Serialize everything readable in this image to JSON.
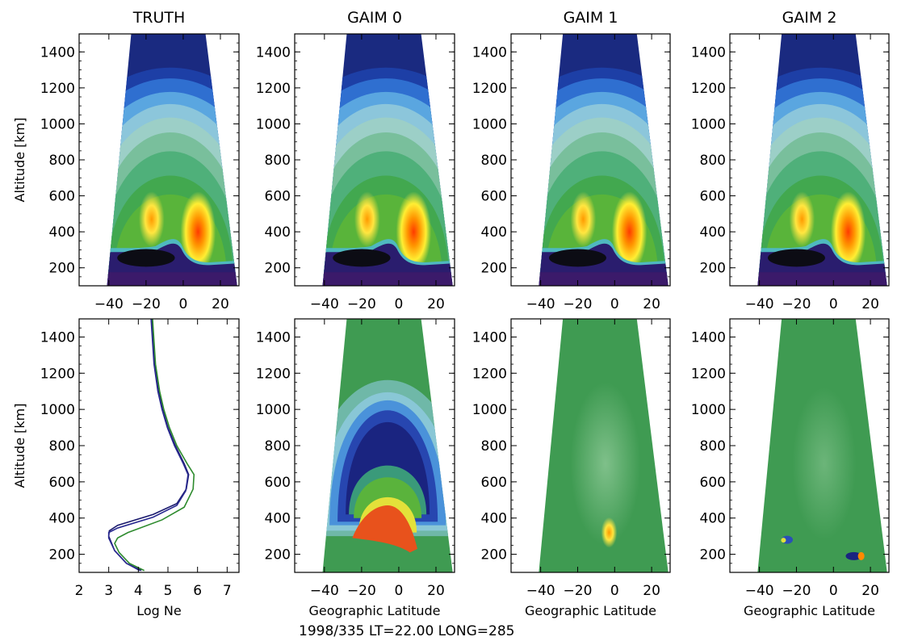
{
  "figure": {
    "footer": "1998/335   LT=22.00   LONG=285",
    "colors": {
      "axis": "#000000",
      "profile_series_1": "#1a1a6e",
      "profile_series_2": "#2e8b2e",
      "residual_background": "#3f9b52"
    }
  },
  "chart_data": [
    {
      "type": "heatmap",
      "title": "TRUTH",
      "ylabel": "Altitude [km]",
      "xlabel": "",
      "x_ticks": [
        -40,
        -20,
        0,
        20
      ],
      "x_tick_labels": [
        "−40",
        "−20",
        "0",
        "20"
      ],
      "y_ticks": [
        200,
        400,
        600,
        800,
        1000,
        1200,
        1400
      ],
      "xlim": [
        -56,
        30
      ],
      "ylim": [
        100,
        1500
      ],
      "colormap": "rainbow",
      "features": "dark trough near 300 km between -40 and 0; twin equatorial anomaly crests near -15 and +8 at 350-500 km"
    },
    {
      "type": "heatmap",
      "title": "GAIM 0",
      "ylabel": "",
      "xlabel": "",
      "x_ticks": [
        -40,
        -20,
        0,
        20
      ],
      "x_tick_labels": [
        "−40",
        "−20",
        "0",
        "20"
      ],
      "y_ticks": [
        200,
        400,
        600,
        800,
        1000,
        1200,
        1400
      ],
      "xlim": [
        -56,
        30
      ],
      "ylim": [
        100,
        1500
      ],
      "colormap": "rainbow"
    },
    {
      "type": "heatmap",
      "title": "GAIM  1",
      "ylabel": "",
      "xlabel": "",
      "x_ticks": [
        -40,
        -20,
        0,
        20
      ],
      "x_tick_labels": [
        "−40",
        "−20",
        "0",
        "20"
      ],
      "y_ticks": [
        200,
        400,
        600,
        800,
        1000,
        1200,
        1400
      ],
      "xlim": [
        -56,
        30
      ],
      "ylim": [
        100,
        1500
      ],
      "colormap": "rainbow"
    },
    {
      "type": "heatmap",
      "title": "GAIM  2",
      "ylabel": "",
      "xlabel": "",
      "x_ticks": [
        -40,
        -20,
        0,
        20
      ],
      "x_tick_labels": [
        "−40",
        "−20",
        "0",
        "20"
      ],
      "y_ticks": [
        200,
        400,
        600,
        800,
        1000,
        1200,
        1400
      ],
      "xlim": [
        -56,
        30
      ],
      "ylim": [
        100,
        1500
      ],
      "colormap": "rainbow"
    },
    {
      "type": "line",
      "title": "",
      "ylabel": "Altitude [km]",
      "xlabel": "Log Ne",
      "x_ticks": [
        2,
        3,
        4,
        5,
        6,
        7
      ],
      "x_tick_labels": [
        "2",
        "3",
        "4",
        "5",
        "6",
        "7"
      ],
      "y_ticks": [
        200,
        400,
        600,
        800,
        1000,
        1200,
        1400
      ],
      "xlim": [
        2,
        7.4
      ],
      "ylim": [
        100,
        1500
      ],
      "series": [
        {
          "color": "#1a1a6e",
          "x": [
            4.1,
            3.6,
            3.2,
            3.0,
            3.02,
            3.3,
            4.5,
            5.3,
            5.62,
            5.7,
            5.55,
            5.25,
            5.0,
            4.82,
            4.68,
            4.55,
            4.45
          ],
          "y": [
            110,
            150,
            220,
            300,
            330,
            360,
            420,
            480,
            560,
            640,
            700,
            800,
            900,
            1000,
            1100,
            1250,
            1500
          ]
        },
        {
          "color": "#2a2a90",
          "x": [
            4.05,
            3.6,
            3.2,
            3.0,
            3.0,
            3.3,
            4.5,
            5.3,
            5.6,
            5.68,
            5.52,
            5.22,
            4.98,
            4.8,
            4.66,
            4.53,
            4.43
          ],
          "y": [
            110,
            150,
            220,
            290,
            320,
            345,
            405,
            470,
            550,
            640,
            700,
            800,
            900,
            1000,
            1100,
            1250,
            1500
          ]
        },
        {
          "color": "#2e8b2e",
          "x": [
            4.2,
            3.7,
            3.35,
            3.2,
            3.3,
            3.65,
            4.8,
            5.55,
            5.85,
            5.88,
            5.65,
            5.3,
            5.05,
            4.86,
            4.72,
            4.58,
            4.48
          ],
          "y": [
            110,
            150,
            210,
            260,
            290,
            320,
            390,
            460,
            560,
            640,
            700,
            800,
            900,
            1000,
            1100,
            1250,
            1500
          ]
        }
      ]
    },
    {
      "type": "heatmap",
      "title": "",
      "ylabel": "",
      "xlabel": "Geographic Latitude",
      "x_ticks": [
        -40,
        -20,
        0,
        20
      ],
      "x_tick_labels": [
        "−40",
        "−20",
        "0",
        "20"
      ],
      "y_ticks": [
        200,
        400,
        600,
        800,
        1000,
        1200,
        1400
      ],
      "xlim": [
        -56,
        30
      ],
      "ylim": [
        100,
        1500
      ],
      "colormap": "residual"
    },
    {
      "type": "heatmap",
      "title": "",
      "ylabel": "",
      "xlabel": "Geographic Latitude",
      "x_ticks": [
        -40,
        -20,
        0,
        20
      ],
      "x_tick_labels": [
        "−40",
        "−20",
        "0",
        "20"
      ],
      "y_ticks": [
        200,
        400,
        600,
        800,
        1000,
        1200,
        1400
      ],
      "xlim": [
        -56,
        30
      ],
      "ylim": [
        100,
        1500
      ],
      "colormap": "residual"
    },
    {
      "type": "heatmap",
      "title": "",
      "ylabel": "",
      "xlabel": "Geographic Latitude",
      "x_ticks": [
        -40,
        -20,
        0,
        20
      ],
      "x_tick_labels": [
        "−40",
        "−20",
        "0",
        "20"
      ],
      "y_ticks": [
        200,
        400,
        600,
        800,
        1000,
        1200,
        1400
      ],
      "xlim": [
        -56,
        30
      ],
      "ylim": [
        100,
        1500
      ],
      "colormap": "residual"
    }
  ]
}
